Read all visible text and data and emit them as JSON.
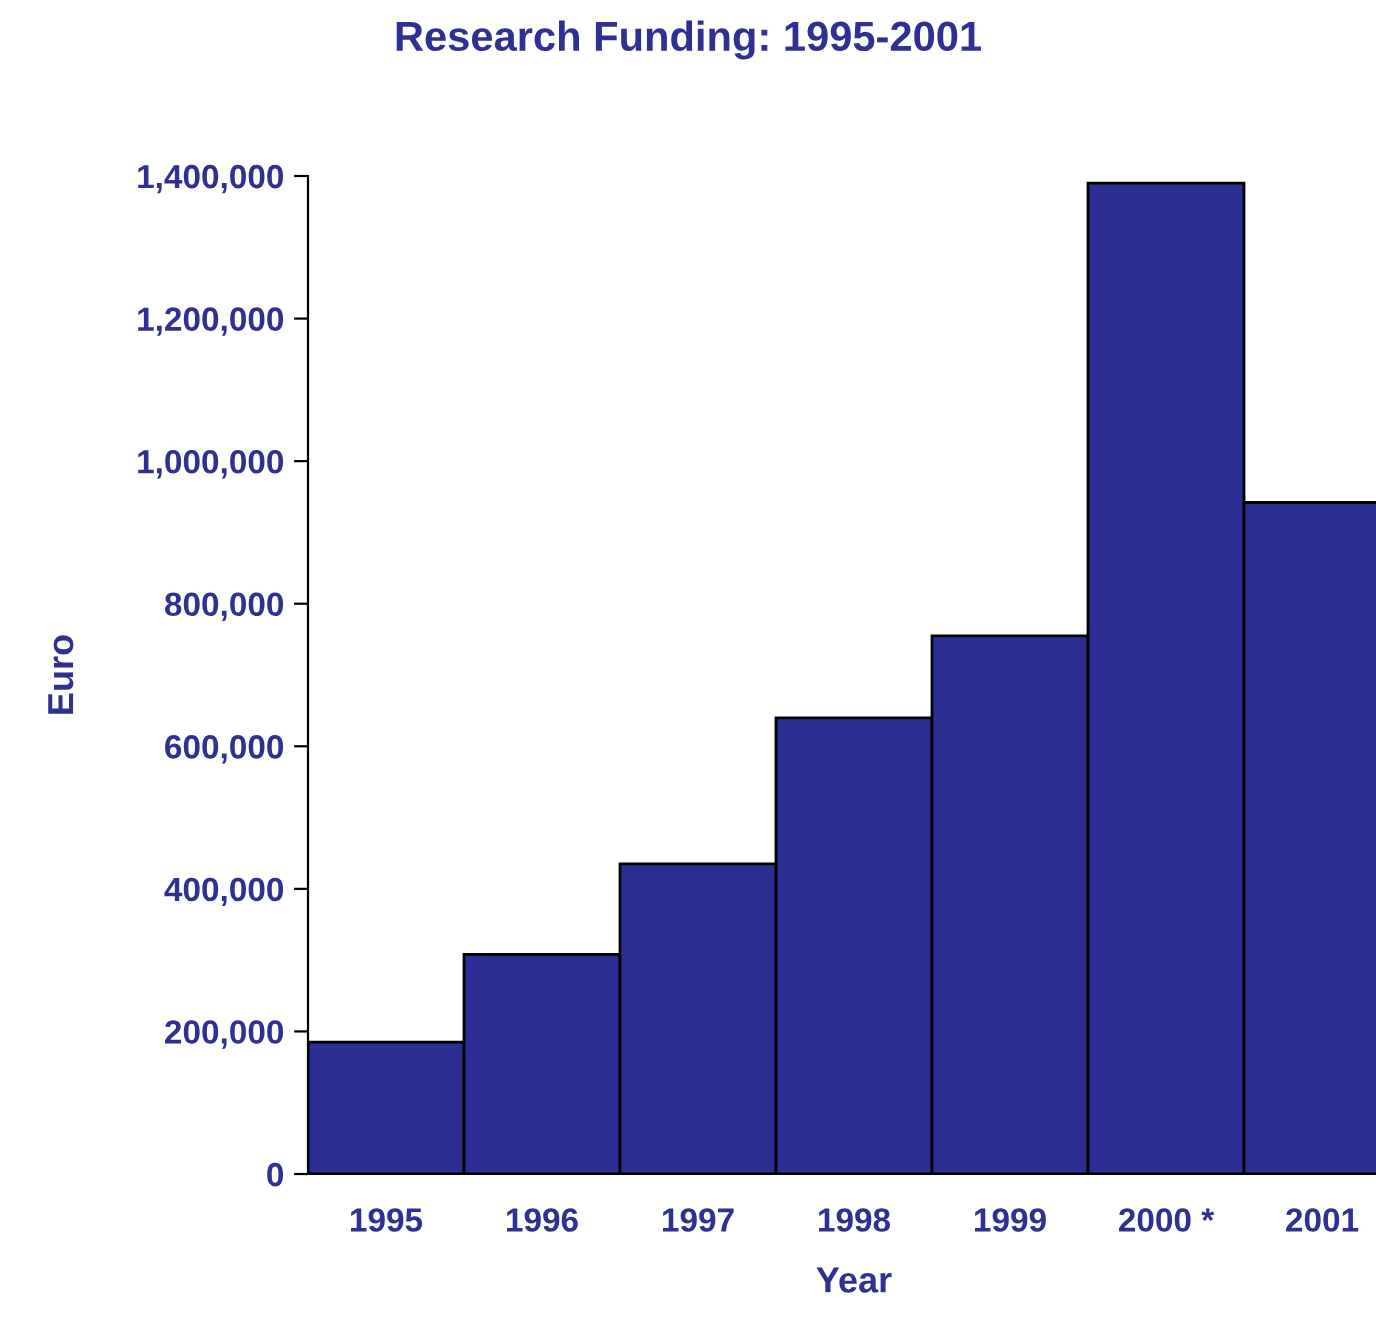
{
  "chart_data": {
    "type": "bar",
    "title": "Research Funding: 1995-2001",
    "xlabel": "Year",
    "ylabel": "Euro",
    "categories": [
      "1995",
      "1996",
      "1997",
      "1998",
      "1999",
      "2000 *",
      "2001"
    ],
    "values": [
      185000,
      308000,
      435000,
      640000,
      755000,
      1390000,
      942000
    ],
    "color": "#2b2f94",
    "ylim": [
      0,
      1400000
    ],
    "yticks": [
      {
        "value": 0,
        "label": "0"
      },
      {
        "value": 200000,
        "label": "200,000"
      },
      {
        "value": 400000,
        "label": "400,000"
      },
      {
        "value": 600000,
        "label": "600,000"
      },
      {
        "value": 800000,
        "label": "800,000"
      },
      {
        "value": 1000000,
        "label": "1,000,000"
      },
      {
        "value": 1200000,
        "label": "1,200,000"
      },
      {
        "value": 1400000,
        "label": "1,400,000"
      }
    ],
    "grid": false
  }
}
